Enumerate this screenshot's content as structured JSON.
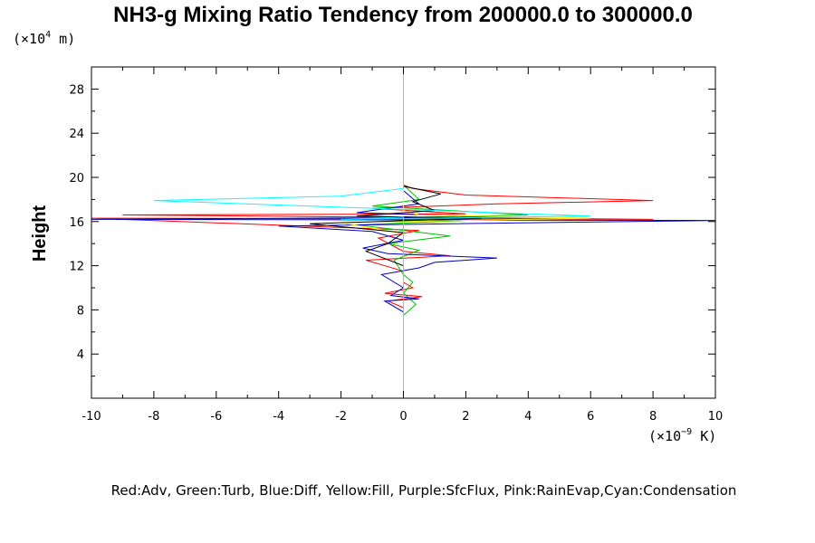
{
  "chart_data": {
    "type": "line",
    "title": "NH3-g Mixing Ratio Tendency from 200000.0 to 300000.0",
    "ylabel": "Height",
    "xlabel": "",
    "y_units_prefix": "(×10",
    "y_units_exp": "4",
    "y_units_suffix": " m)",
    "x_units_prefix": "(×10",
    "x_units_exp": "−9",
    "x_units_suffix": " K)",
    "xlim": [
      -10,
      10
    ],
    "ylim": [
      0,
      30
    ],
    "x_ticks": [
      -10,
      -8,
      -6,
      -4,
      -2,
      0,
      2,
      4,
      6,
      8,
      10
    ],
    "x_tick_labels": [
      "-10",
      "-8",
      "-6",
      "-4",
      "-2",
      "0",
      "2",
      "4",
      "6",
      "8",
      "10"
    ],
    "y_ticks": [
      4,
      8,
      12,
      16,
      20,
      24,
      28
    ],
    "y_tick_labels": [
      "4",
      "8",
      "12",
      "16",
      "20",
      "24",
      "28"
    ],
    "grid": false,
    "legend_text": "Red:Adv, Green:Turb, Blue:Diff, Yellow:Fill, Purple:SfcFlux, Pink:RainEvap,Cyan:Condensation",
    "series": [
      {
        "color": "#ff0000",
        "points": [
          [
            0,
            0
          ],
          [
            0,
            6
          ],
          [
            0,
            8.2
          ],
          [
            -0.5,
            8.8
          ],
          [
            0.6,
            9.2
          ],
          [
            -0.6,
            9.5
          ],
          [
            0.3,
            10
          ],
          [
            0,
            10.5
          ],
          [
            0,
            11.5
          ],
          [
            -1.2,
            12.5
          ],
          [
            1.5,
            12.9
          ],
          [
            0,
            13.3
          ],
          [
            -0.8,
            14.5
          ],
          [
            0.5,
            15.2
          ],
          [
            -10,
            16.3
          ],
          [
            8,
            16.2
          ],
          [
            -9,
            16.6
          ],
          [
            2,
            16.7
          ],
          [
            -1,
            17.2
          ],
          [
            3,
            17.6
          ],
          [
            8,
            17.9
          ],
          [
            2,
            18.4
          ],
          [
            0.3,
            19
          ],
          [
            0,
            19.3
          ],
          [
            0,
            30
          ]
        ]
      },
      {
        "color": "#00c000",
        "points": [
          [
            0,
            0
          ],
          [
            0,
            7.5
          ],
          [
            0.4,
            8.5
          ],
          [
            0,
            9.5
          ],
          [
            0.3,
            10.5
          ],
          [
            0,
            11.2
          ],
          [
            -0.3,
            12.5
          ],
          [
            0.5,
            13.4
          ],
          [
            -0.5,
            14
          ],
          [
            1.5,
            14.7
          ],
          [
            0,
            15.2
          ],
          [
            -1.5,
            15.7
          ],
          [
            2,
            16.1
          ],
          [
            -1,
            16.3
          ],
          [
            4,
            16.6
          ],
          [
            1.5,
            17
          ],
          [
            -1,
            17.4
          ],
          [
            0.5,
            18
          ],
          [
            0,
            19.3
          ],
          [
            0,
            30
          ]
        ]
      },
      {
        "color": "#0000c0",
        "points": [
          [
            0,
            0
          ],
          [
            0,
            7.8
          ],
          [
            -0.6,
            8.8
          ],
          [
            0.5,
            9
          ],
          [
            -0.4,
            9.3
          ],
          [
            0,
            10
          ],
          [
            -0.7,
            11.2
          ],
          [
            0.5,
            11.8
          ],
          [
            1,
            12.3
          ],
          [
            3,
            12.7
          ],
          [
            -0.5,
            13.1
          ],
          [
            -1.3,
            13.6
          ],
          [
            0,
            14.3
          ],
          [
            -1,
            15.1
          ],
          [
            -4,
            15.6
          ],
          [
            10,
            16.1
          ],
          [
            -10,
            16.2
          ],
          [
            3,
            16.4
          ],
          [
            -1.5,
            16.8
          ],
          [
            0.5,
            17.6
          ],
          [
            0,
            18.8
          ],
          [
            0,
            30
          ]
        ]
      },
      {
        "color": "#ffff00",
        "points": [
          [
            0,
            0
          ],
          [
            0,
            14.9
          ],
          [
            -2,
            15.9
          ],
          [
            6,
            16.3
          ],
          [
            0.5,
            16.6
          ],
          [
            0,
            17
          ],
          [
            0,
            30
          ]
        ]
      },
      {
        "color": "#000000",
        "points": [
          [
            0,
            0
          ],
          [
            0,
            9
          ],
          [
            0,
            12
          ],
          [
            -1.2,
            13.3
          ],
          [
            -0.5,
            14
          ],
          [
            0,
            15
          ],
          [
            -3,
            15.8
          ],
          [
            2.5,
            16.3
          ],
          [
            -1.5,
            16.5
          ],
          [
            1,
            17
          ],
          [
            0.3,
            17.8
          ],
          [
            1.2,
            18.5
          ],
          [
            0,
            19.2
          ],
          [
            0,
            30
          ]
        ]
      },
      {
        "color": "#00ffff",
        "points": [
          [
            0,
            0
          ],
          [
            0,
            16.4
          ],
          [
            -2,
            16.2
          ],
          [
            6,
            16.5
          ],
          [
            -8,
            17.9
          ],
          [
            -2,
            18.3
          ],
          [
            0,
            19
          ],
          [
            0,
            30
          ]
        ]
      }
    ]
  }
}
